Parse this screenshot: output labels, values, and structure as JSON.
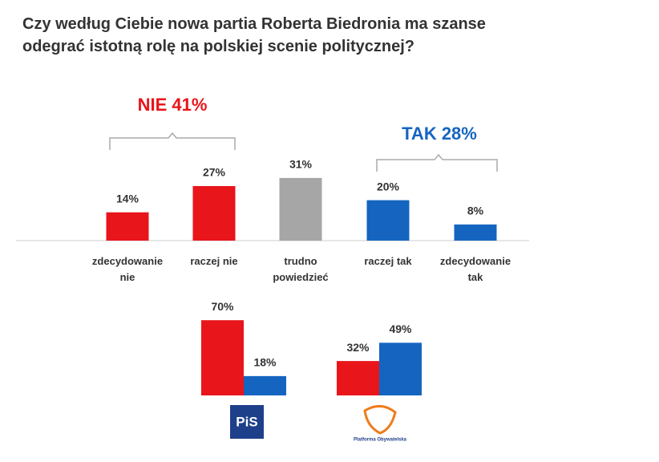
{
  "chart_data": [
    {
      "type": "bar",
      "title": "Czy według Ciebie nowa partia Roberta Biedronia ma szanse odegrać istotną rolę na polskiej scenie politycznej?",
      "categories": [
        "zdecydowanie nie",
        "raczej nie",
        "trudno powiedzieć",
        "raczej tak",
        "zdecydowanie tak"
      ],
      "values": [
        14,
        27,
        31,
        20,
        8
      ],
      "value_labels": [
        "14%",
        "27%",
        "31%",
        "20%",
        "8%"
      ],
      "colors": [
        "#e8151b",
        "#e8151b",
        "#a6a6a6",
        "#1565c0",
        "#1565c0"
      ],
      "annotations": [
        {
          "text": "NIE 41%",
          "color": "#e8151b"
        },
        {
          "text": "TAK 28%",
          "color": "#1565c0"
        }
      ]
    },
    {
      "type": "grouped_bar",
      "categories": [
        "PiS",
        "Platforma Obywatelska"
      ],
      "series": [
        {
          "color": "#e8151b",
          "values": [
            70,
            32
          ],
          "value_labels": [
            "70%",
            "32%"
          ]
        },
        {
          "color": "#1565c0",
          "values": [
            18,
            49
          ],
          "value_labels": [
            "18%",
            "49%"
          ]
        }
      ]
    }
  ]
}
